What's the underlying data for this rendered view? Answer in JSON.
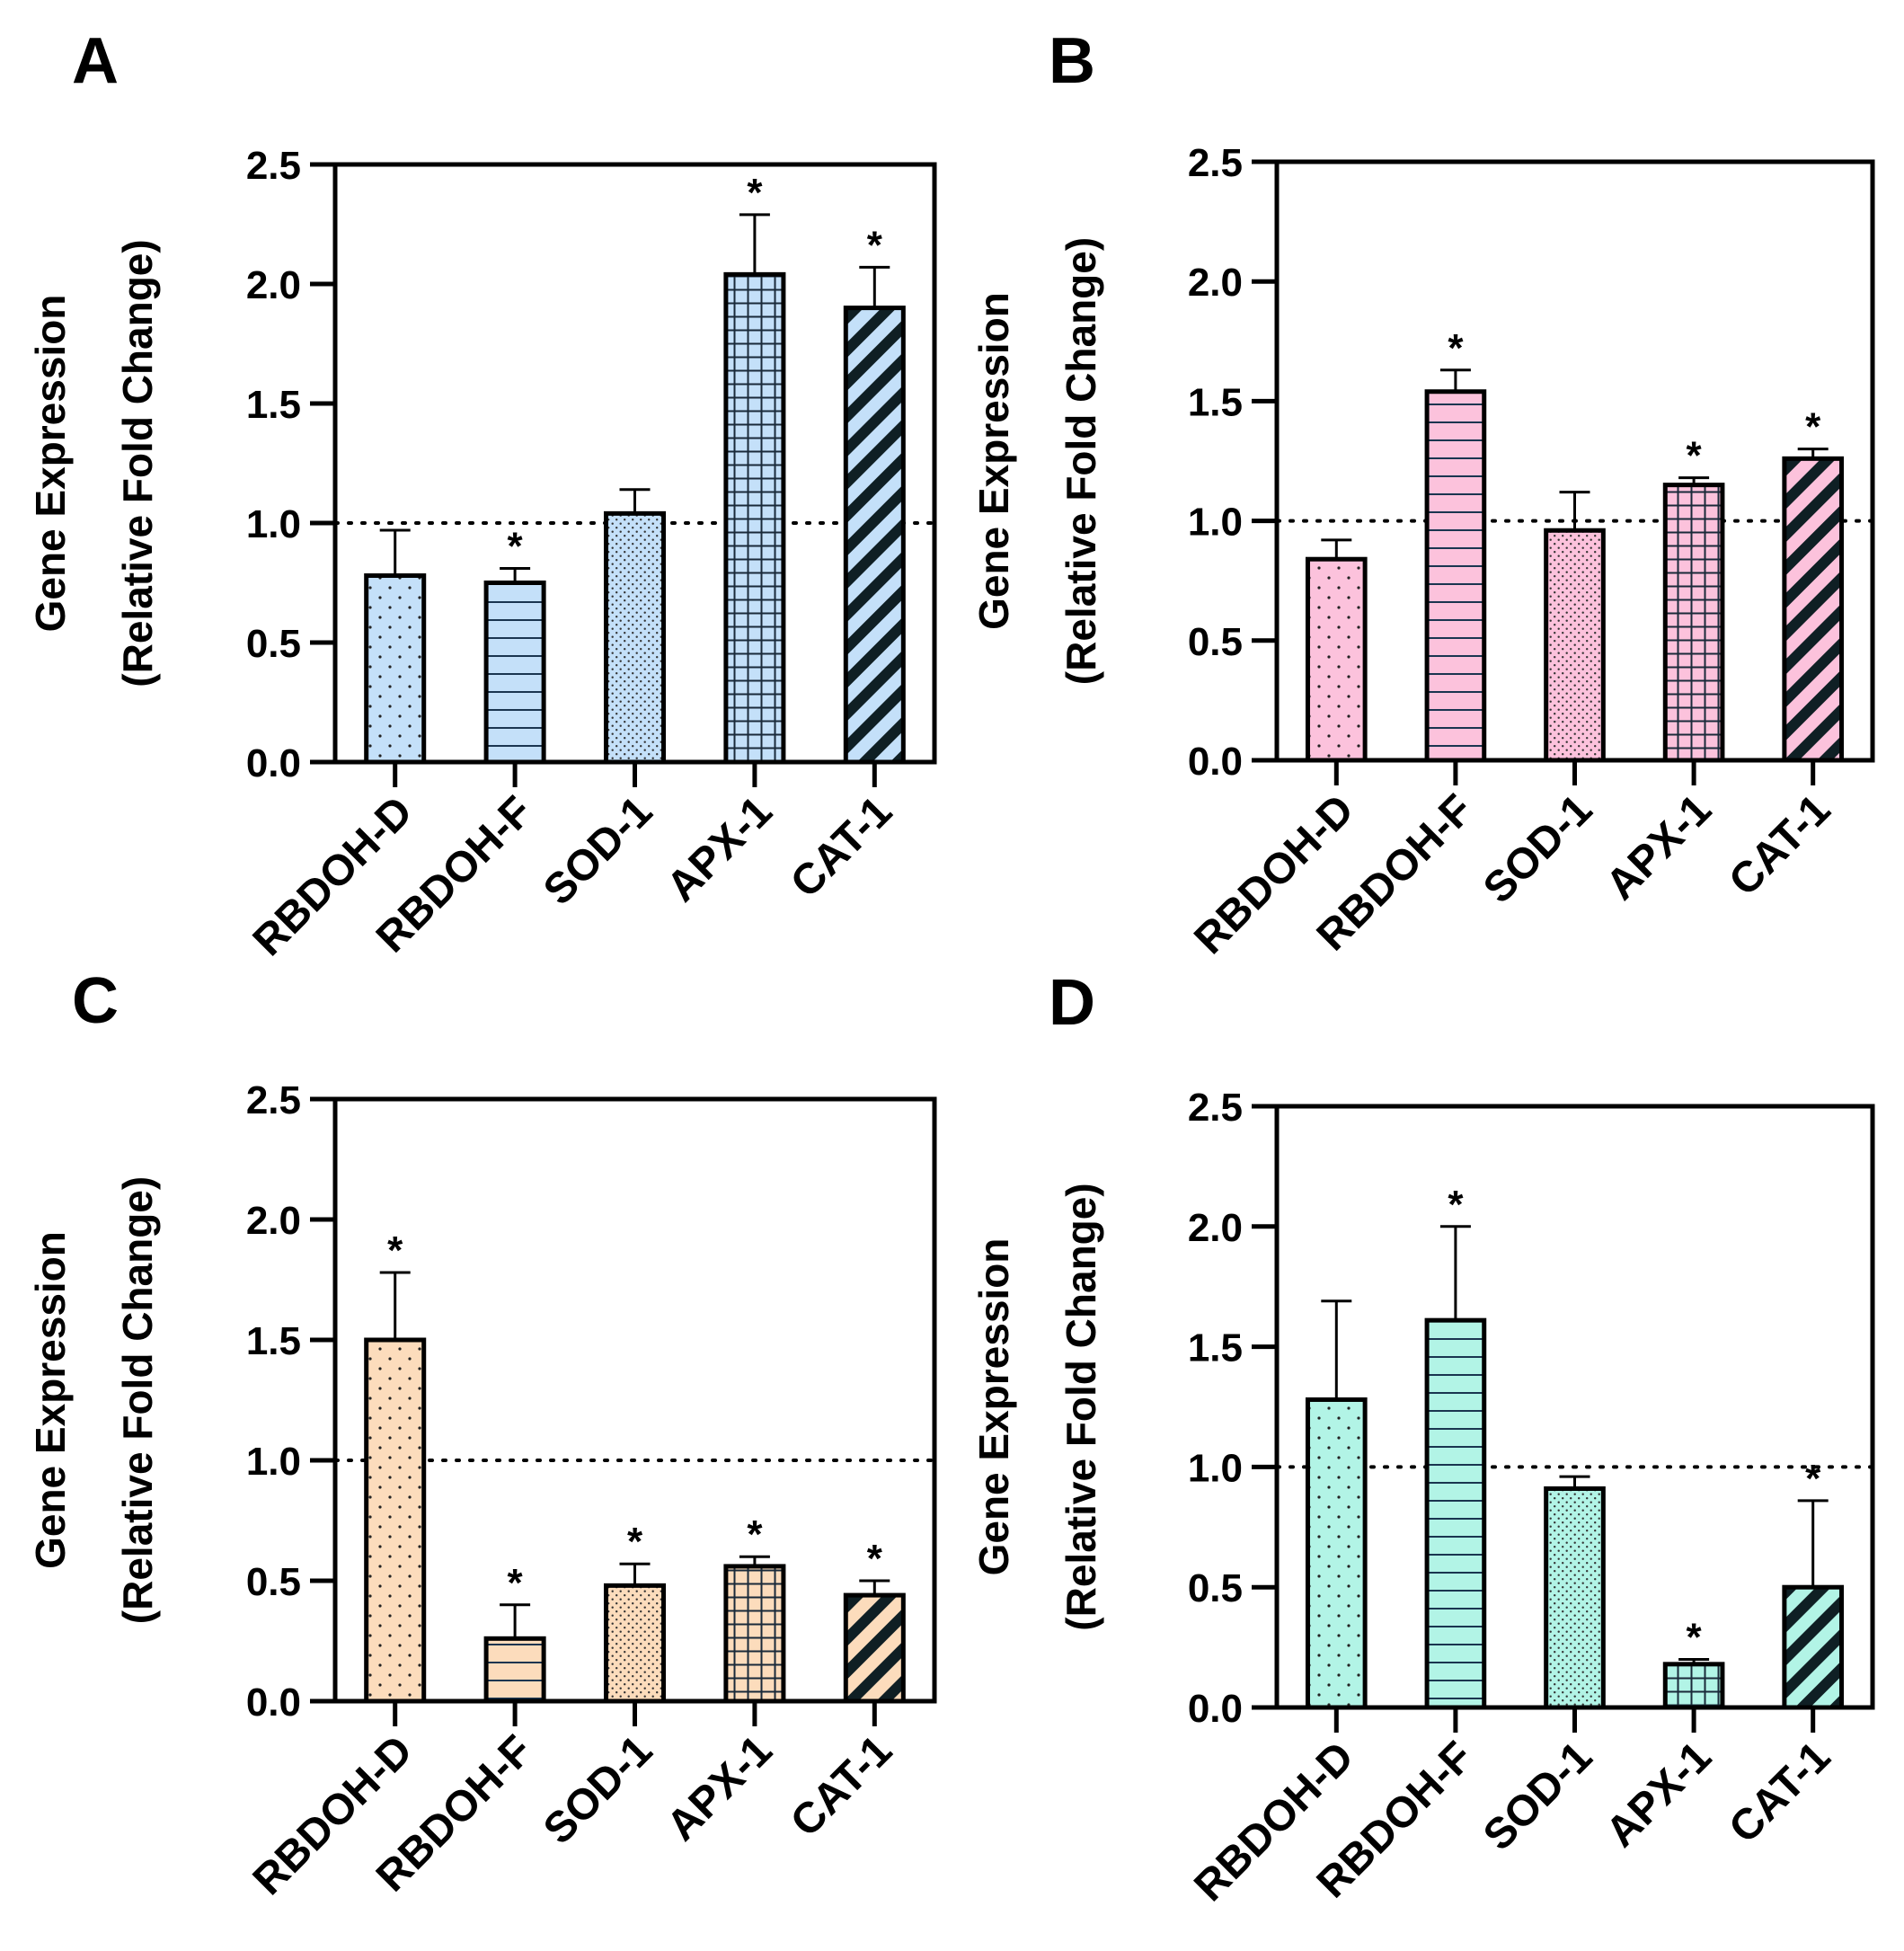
{
  "figure": {
    "patterns": [
      "dots",
      "hlines",
      "fine-dots",
      "grid",
      "diagonal"
    ]
  },
  "chart_data": [
    {
      "type": "bar",
      "panel": "A",
      "categories": [
        "RBDOH-D",
        "RBDOH-F",
        "SOD-1",
        "APX-1",
        "CAT-1"
      ],
      "values": [
        0.78,
        0.75,
        1.04,
        2.04,
        1.9
      ],
      "errors": [
        0.19,
        0.06,
        0.1,
        0.25,
        0.17
      ],
      "significant": [
        false,
        true,
        false,
        true,
        true
      ],
      "ylabel_line1": "Gene Expression",
      "ylabel_line2": "(Relative Fold Change)",
      "ylim": [
        0,
        2.5
      ],
      "yticks": [
        "0.0",
        "0.5",
        "1.0",
        "1.5",
        "2.0",
        "2.5"
      ],
      "reference_line": 1.0,
      "fill": "#c4e0f9",
      "star": "*"
    },
    {
      "type": "bar",
      "panel": "B",
      "categories": [
        "RBDOH-D",
        "RBDOH-F",
        "SOD-1",
        "APX-1",
        "CAT-1"
      ],
      "values": [
        0.84,
        1.54,
        0.96,
        1.15,
        1.26
      ],
      "errors": [
        0.08,
        0.09,
        0.16,
        0.03,
        0.04
      ],
      "significant": [
        false,
        true,
        false,
        true,
        true
      ],
      "ylabel_line1": "Gene Expression",
      "ylabel_line2": "(Relative Fold Change)",
      "ylim": [
        0,
        2.5
      ],
      "yticks": [
        "0.0",
        "0.5",
        "1.0",
        "1.5",
        "2.0",
        "2.5"
      ],
      "reference_line": 1.0,
      "fill": "#fcc2dc",
      "star": "*"
    },
    {
      "type": "bar",
      "panel": "C",
      "categories": [
        "RBDOH-D",
        "RBDOH-F",
        "SOD-1",
        "APX-1",
        "CAT-1"
      ],
      "values": [
        1.5,
        0.26,
        0.48,
        0.56,
        0.44
      ],
      "errors": [
        0.28,
        0.14,
        0.09,
        0.04,
        0.06
      ],
      "significant": [
        true,
        true,
        true,
        true,
        true
      ],
      "ylabel_line1": "Gene Expression",
      "ylabel_line2": "(Relative Fold Change)",
      "ylim": [
        0,
        2.5
      ],
      "yticks": [
        "0.0",
        "0.5",
        "1.0",
        "1.5",
        "2.0",
        "2.5"
      ],
      "reference_line": 1.0,
      "fill": "#fcdcbc",
      "star": "*"
    },
    {
      "type": "bar",
      "panel": "D",
      "categories": [
        "RBDOH-D",
        "RBDOH-F",
        "SOD-1",
        "APX-1",
        "CAT-1"
      ],
      "values": [
        1.28,
        1.61,
        0.91,
        0.18,
        0.5
      ],
      "errors": [
        0.41,
        0.39,
        0.05,
        0.02,
        0.36
      ],
      "significant": [
        false,
        true,
        false,
        true,
        true
      ],
      "ylabel_line1": "Gene Expression",
      "ylabel_line2": "(Relative Fold Change)",
      "ylim": [
        0,
        2.5
      ],
      "yticks": [
        "0.0",
        "0.5",
        "1.0",
        "1.5",
        "2.0",
        "2.5"
      ],
      "reference_line": 1.0,
      "fill": "#b2f4e6",
      "star": "*"
    }
  ]
}
